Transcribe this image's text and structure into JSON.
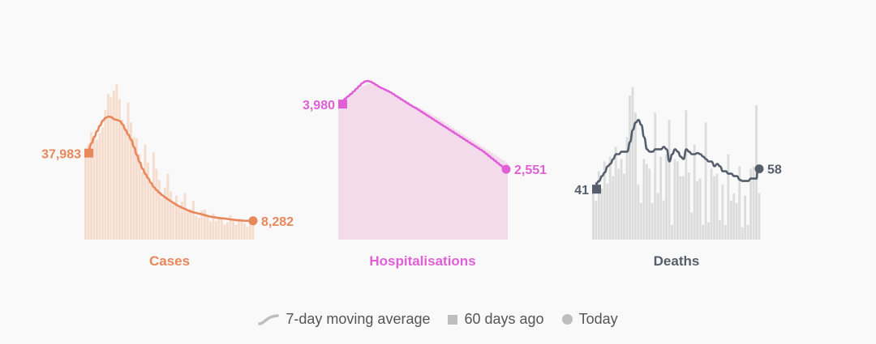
{
  "chart_data": [
    {
      "type": "bar",
      "title": "Cases",
      "color": "#e8875a",
      "bar_color": "#f6dccd",
      "start_label": "37,983",
      "end_label": "8,282",
      "start_value": 37983,
      "end_value": 8282,
      "ylim": [
        0,
        70000
      ],
      "values": [
        38500,
        42000,
        47500,
        45200,
        44100,
        47000,
        49500,
        57200,
        64300,
        62900,
        65800,
        68500,
        62000,
        52800,
        49000,
        60500,
        51800,
        45200,
        44800,
        37800,
        29800,
        42000,
        34000,
        25200,
        38500,
        31200,
        26400,
        18400,
        23000,
        29000,
        21200,
        15800,
        19400,
        14200,
        16800,
        20500,
        12300,
        13500,
        17000,
        10700,
        9600,
        12900,
        13200,
        10100,
        8100,
        11500,
        8200,
        9200,
        9700,
        6700,
        7600,
        10600,
        8900,
        6600,
        9200,
        9100,
        7100,
        5600,
        8000,
        8900
      ],
      "moving_average": [
        37983,
        39800,
        42500,
        45300,
        47900,
        50300,
        52500,
        53700,
        54300,
        54000,
        53100,
        52800,
        52300,
        50800,
        48400,
        46200,
        44000,
        40800,
        37300,
        34100,
        31200,
        29000,
        27000,
        25000,
        23100,
        21800,
        20600,
        19500,
        18600,
        17700,
        16900,
        16100,
        15300,
        14600,
        14000,
        13500,
        12900,
        12400,
        12000,
        11700,
        11400,
        11100,
        10800,
        10400,
        10100,
        9900,
        9700,
        9500,
        9400,
        9300,
        9100,
        8900,
        8800,
        8600,
        8500,
        8400,
        8300,
        8300,
        8300,
        8282
      ]
    },
    {
      "type": "area",
      "title": "Hospitalisations",
      "color": "#e05fd7",
      "bar_color": "#f3dbec",
      "start_label": "3,980",
      "end_label": "2,551",
      "start_value": 3980,
      "end_value": 2551,
      "ylim": [
        1000,
        4500
      ],
      "values": [
        3980,
        4040,
        4090,
        4130,
        4180,
        4240,
        4300,
        4350,
        4390,
        4410,
        4430,
        4430,
        4420,
        4390,
        4350,
        4320,
        4300,
        4280,
        4250,
        4220,
        4190,
        4150,
        4110,
        4080,
        4040,
        4000,
        3970,
        3940,
        3910,
        3880,
        3850,
        3820,
        3780,
        3740,
        3710,
        3670,
        3630,
        3590,
        3550,
        3510,
        3470,
        3430,
        3390,
        3350,
        3310,
        3270,
        3230,
        3190,
        3150,
        3110,
        3070,
        3030,
        2990,
        2950,
        2910,
        2870,
        2830,
        2790,
        2750,
        2700
      ],
      "moving_average": [
        3980,
        4050,
        4110,
        4160,
        4210,
        4270,
        4330,
        4390,
        4450,
        4490,
        4500,
        4480,
        4450,
        4410,
        4370,
        4340,
        4310,
        4280,
        4250,
        4210,
        4170,
        4130,
        4090,
        4050,
        4010,
        3970,
        3930,
        3900,
        3860,
        3820,
        3780,
        3740,
        3700,
        3660,
        3620,
        3580,
        3540,
        3500,
        3460,
        3420,
        3380,
        3340,
        3300,
        3260,
        3220,
        3180,
        3140,
        3100,
        3060,
        3020,
        2980,
        2940,
        2890,
        2840,
        2790,
        2740,
        2690,
        2640,
        2590,
        2551
      ]
    },
    {
      "type": "bar",
      "title": "Deaths",
      "color": "#575e6b",
      "bar_color": "#dcdcdc",
      "start_label": "41",
      "end_label": "58",
      "start_value": 41,
      "end_value": 58,
      "ylim": [
        0,
        130
      ],
      "values": [
        41,
        32,
        56,
        42,
        64,
        46,
        68,
        52,
        76,
        58,
        66,
        54,
        84,
        118,
        125,
        104,
        45,
        30,
        66,
        62,
        58,
        30,
        104,
        38,
        68,
        32,
        70,
        98,
        12,
        66,
        64,
        52,
        52,
        106,
        55,
        22,
        78,
        48,
        50,
        12,
        96,
        14,
        58,
        52,
        54,
        16,
        45,
        12,
        70,
        32,
        38,
        30,
        60,
        10,
        36,
        12,
        58,
        60,
        110,
        38
      ],
      "moving_average": [
        41,
        46,
        48,
        52,
        55,
        60,
        62,
        66,
        70,
        70,
        72,
        72,
        72,
        80,
        90,
        96,
        98,
        94,
        84,
        74,
        72,
        72,
        74,
        74,
        74,
        76,
        74,
        64,
        70,
        74,
        72,
        68,
        66,
        74,
        72,
        70,
        70,
        71,
        70,
        68,
        66,
        64,
        64,
        60,
        62,
        60,
        56,
        56,
        54,
        54,
        52,
        52,
        49,
        48,
        48,
        48,
        50,
        50,
        50,
        58
      ]
    }
  ],
  "legend": {
    "moving_average": "7-day moving average",
    "sixty_days": "60 days ago",
    "today": "Today"
  }
}
